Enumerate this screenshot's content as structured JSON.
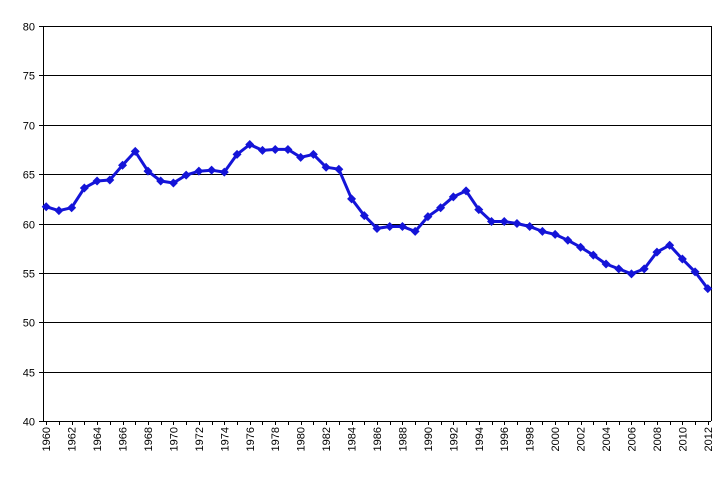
{
  "chart_data": {
    "type": "line",
    "title": "",
    "xlabel": "",
    "ylabel": "",
    "ylim": [
      40,
      80
    ],
    "yticks": [
      40,
      45,
      50,
      55,
      60,
      65,
      70,
      75,
      80
    ],
    "grid": true,
    "legend": "none",
    "x": [
      1960,
      1961,
      1962,
      1963,
      1964,
      1965,
      1966,
      1967,
      1968,
      1969,
      1970,
      1971,
      1972,
      1973,
      1974,
      1975,
      1976,
      1977,
      1978,
      1979,
      1980,
      1981,
      1982,
      1983,
      1984,
      1985,
      1986,
      1987,
      1988,
      1989,
      1990,
      1991,
      1992,
      1993,
      1994,
      1995,
      1996,
      1997,
      1998,
      1999,
      2000,
      2001,
      2002,
      2003,
      2004,
      2005,
      2006,
      2007,
      2008,
      2009,
      2010,
      2011,
      2012
    ],
    "xtick_labels": [
      "1960",
      "1962",
      "1964",
      "1966",
      "1968",
      "1970",
      "1972",
      "1974",
      "1976",
      "1978",
      "1980",
      "1982",
      "1984",
      "1986",
      "1988",
      "1990",
      "1992",
      "1994",
      "1996",
      "1998",
      "2000",
      "2002",
      "2004",
      "2006",
      "2008",
      "2010",
      "2012"
    ],
    "series": [
      {
        "values": [
          61.7,
          61.3,
          61.6,
          63.6,
          64.3,
          64.4,
          65.9,
          67.3,
          65.3,
          64.3,
          64.1,
          64.9,
          65.3,
          65.4,
          65.2,
          67.0,
          68.0,
          67.4,
          67.5,
          67.5,
          66.7,
          67.0,
          65.7,
          65.5,
          62.5,
          60.8,
          59.5,
          59.7,
          59.7,
          59.2,
          60.7,
          61.6,
          62.7,
          63.3,
          61.4,
          60.2,
          60.2,
          60.0,
          59.7,
          59.2,
          58.9,
          58.3,
          57.6,
          56.8,
          55.9,
          55.4,
          54.9,
          55.4,
          57.1,
          57.8,
          56.4,
          55.1,
          53.4
        ],
        "color": "#1414d8"
      }
    ]
  }
}
